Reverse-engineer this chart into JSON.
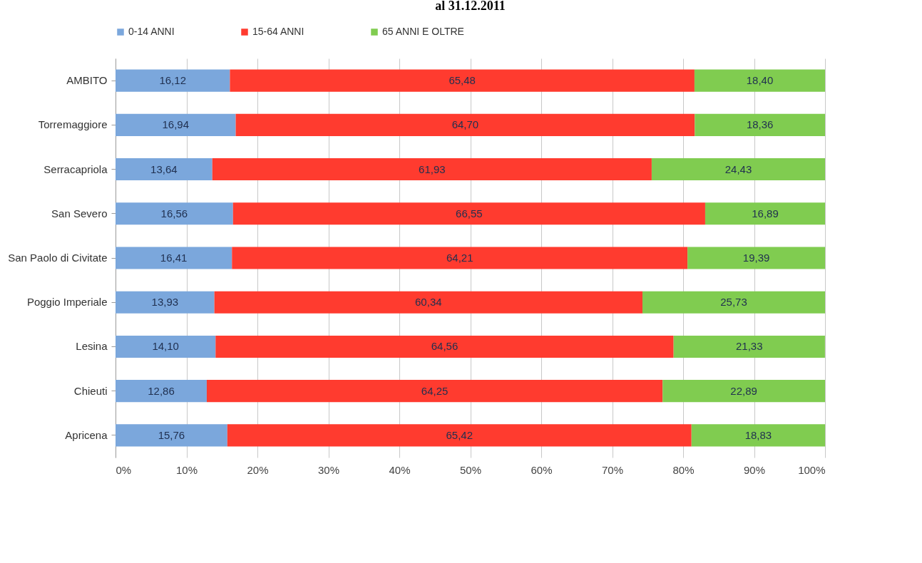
{
  "chart_data": {
    "type": "bar",
    "title": "al 31.12.2011",
    "orientation": "horizontal",
    "stacked": true,
    "categories": [
      "AMBITO",
      "Torremaggiore",
      "Serracapriola",
      "San Severo",
      "San Paolo di Civitate",
      "Poggio Imperiale",
      "Lesina",
      "Chieuti",
      "Apricena"
    ],
    "series": [
      {
        "name": "0-14 ANNI",
        "color": "#7ba7dc",
        "values": [
          16.12,
          16.94,
          13.64,
          16.56,
          16.41,
          13.93,
          14.1,
          12.86,
          15.76
        ],
        "value_labels": [
          "16,12",
          "16,94",
          "13,64",
          "16,56",
          "16,41",
          "13,93",
          "14,10",
          "12,86",
          "15,76"
        ]
      },
      {
        "name": "15-64 ANNI",
        "color": "#ff3b2f",
        "values": [
          65.48,
          64.7,
          61.93,
          66.55,
          64.21,
          60.34,
          64.56,
          64.25,
          65.42
        ],
        "value_labels": [
          "65,48",
          "64,70",
          "61,93",
          "66,55",
          "64,21",
          "60,34",
          "64,56",
          "64,25",
          "65,42"
        ]
      },
      {
        "name": "65 ANNI E OLTRE",
        "color": "#80cc50",
        "values": [
          18.4,
          18.36,
          24.43,
          16.89,
          19.39,
          25.73,
          21.33,
          22.89,
          18.83
        ],
        "value_labels": [
          "18,40",
          "18,36",
          "24,43",
          "16,89",
          "19,39",
          "25,73",
          "21,33",
          "22,89",
          "18,83"
        ]
      }
    ],
    "xlim": [
      0,
      100
    ],
    "xticks": [
      {
        "value": 0,
        "label": "0%"
      },
      {
        "value": 10,
        "label": "10%"
      },
      {
        "value": 20,
        "label": "20%"
      },
      {
        "value": 30,
        "label": "30%"
      },
      {
        "value": 40,
        "label": "40%"
      },
      {
        "value": 50,
        "label": "50%"
      },
      {
        "value": 60,
        "label": "60%"
      },
      {
        "value": 70,
        "label": "70%"
      },
      {
        "value": 80,
        "label": "80%"
      },
      {
        "value": 90,
        "label": "90%"
      },
      {
        "value": 100,
        "label": "100%"
      }
    ],
    "grid": "x",
    "legend": "top"
  }
}
